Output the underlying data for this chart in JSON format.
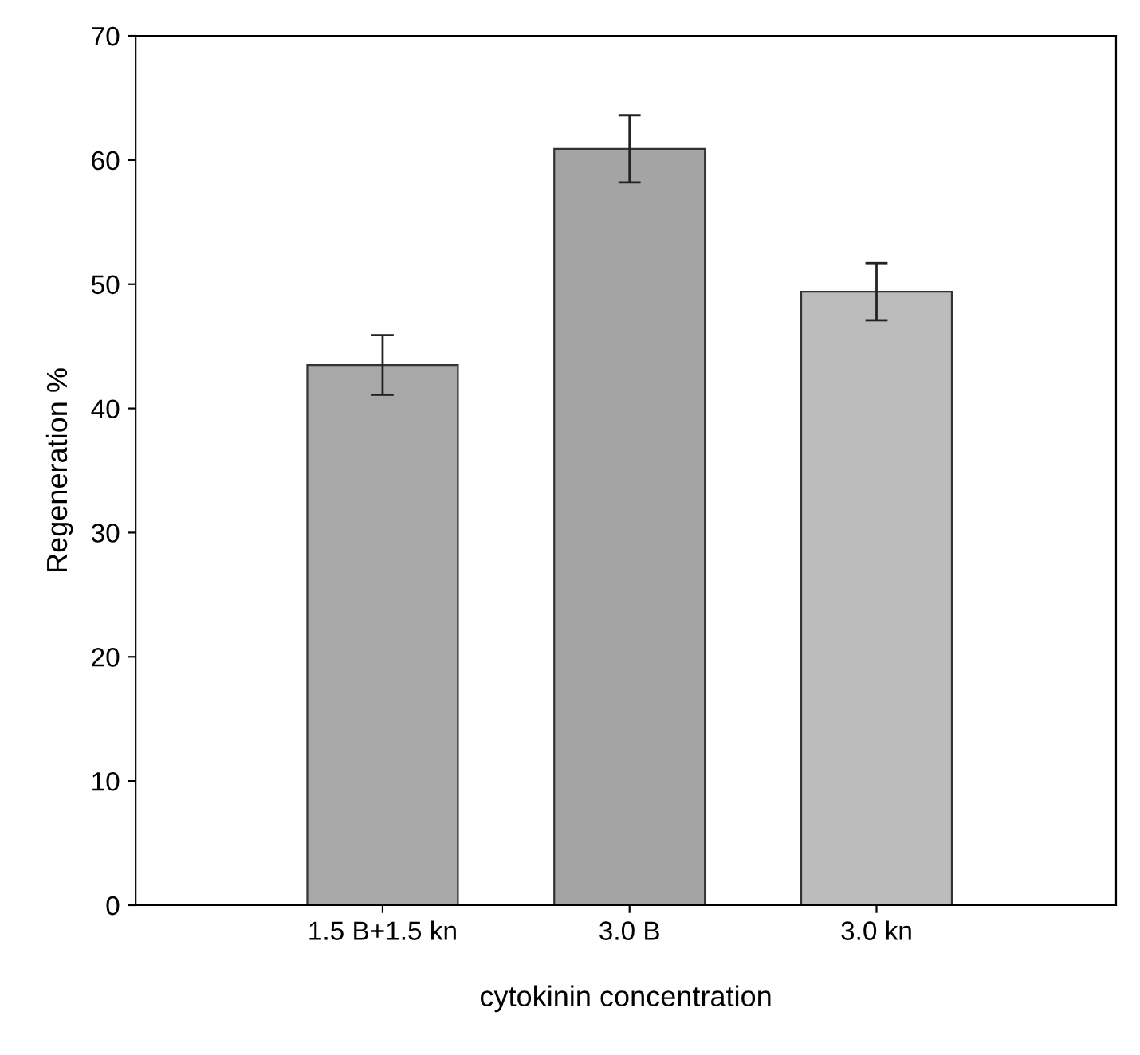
{
  "chart_data": {
    "type": "bar",
    "xlabel": "cytokinin concentration",
    "ylabel": "Regeneration %",
    "categories": [
      "1.5 B+1.5 kn",
      "3.0 B",
      "3.0 kn"
    ],
    "values": [
      43.5,
      60.9,
      49.4
    ],
    "errors": [
      2.4,
      2.7,
      2.3
    ],
    "colors": [
      "#a8a8a8",
      "#a4a4a4",
      "#bcbcbc"
    ],
    "ylim": [
      0,
      70
    ],
    "yticks": [
      0,
      10,
      20,
      30,
      40,
      50,
      60,
      70
    ],
    "grid": false
  }
}
